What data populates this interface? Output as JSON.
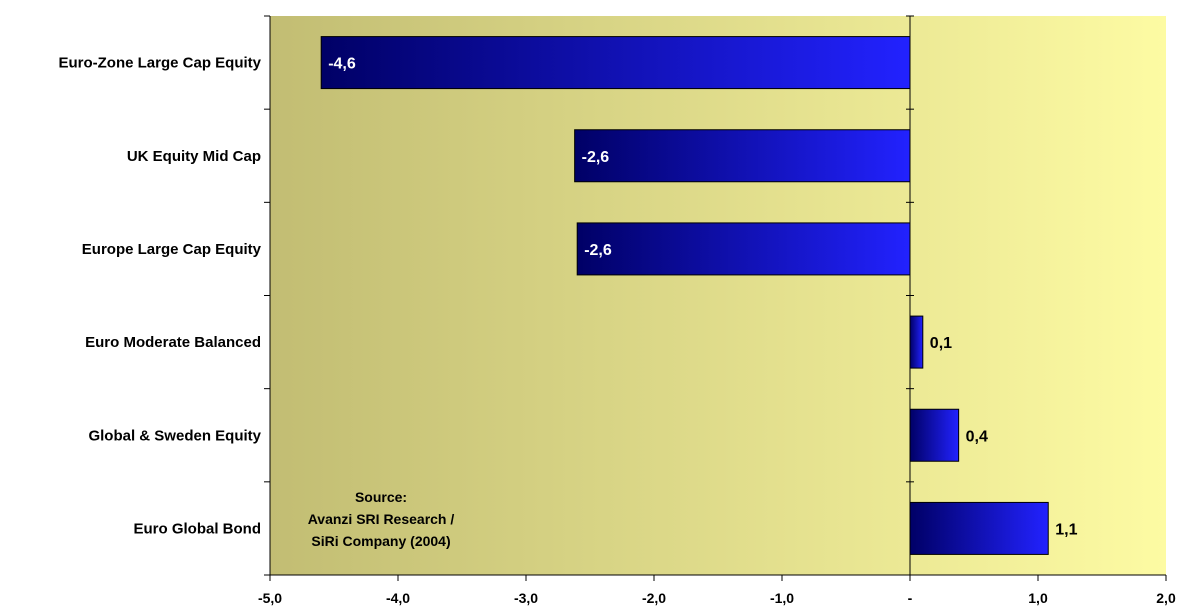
{
  "chart_data": {
    "type": "bar",
    "orientation": "horizontal",
    "categories": [
      "Euro-Zone Large Cap Equity",
      "UK Equity Mid Cap",
      "Europe Large Cap Equity",
      "Euro Moderate Balanced",
      "Global & Sweden Equity",
      "Euro Global Bond"
    ],
    "values": [
      -4.6,
      -2.62,
      -2.6,
      0.1,
      0.38,
      1.08
    ],
    "value_labels": [
      "-4,6",
      "-2,6",
      "-2,6",
      "0,1",
      "0,4",
      "1,1"
    ],
    "xlim": [
      -5.0,
      2.0
    ],
    "x_ticks": [
      -5,
      -4,
      -3,
      -2,
      -1,
      0,
      1,
      2
    ],
    "x_tick_labels": [
      "-5,0",
      "-4,0",
      "-3,0",
      "-2,0",
      "-1,0",
      "-",
      "1,0",
      "2,0"
    ],
    "grid": false,
    "annotation": [
      "Source:",
      "Avanzi SRI Research /",
      "SiRi Company  (2004)"
    ],
    "colors": {
      "bar_dark": "#000066",
      "bar_light": "#2222ff",
      "bg_left": "#c2bd73",
      "bg_right": "#fdfba3",
      "label_inside": "#ffffff",
      "label_outside": "#000000"
    }
  }
}
